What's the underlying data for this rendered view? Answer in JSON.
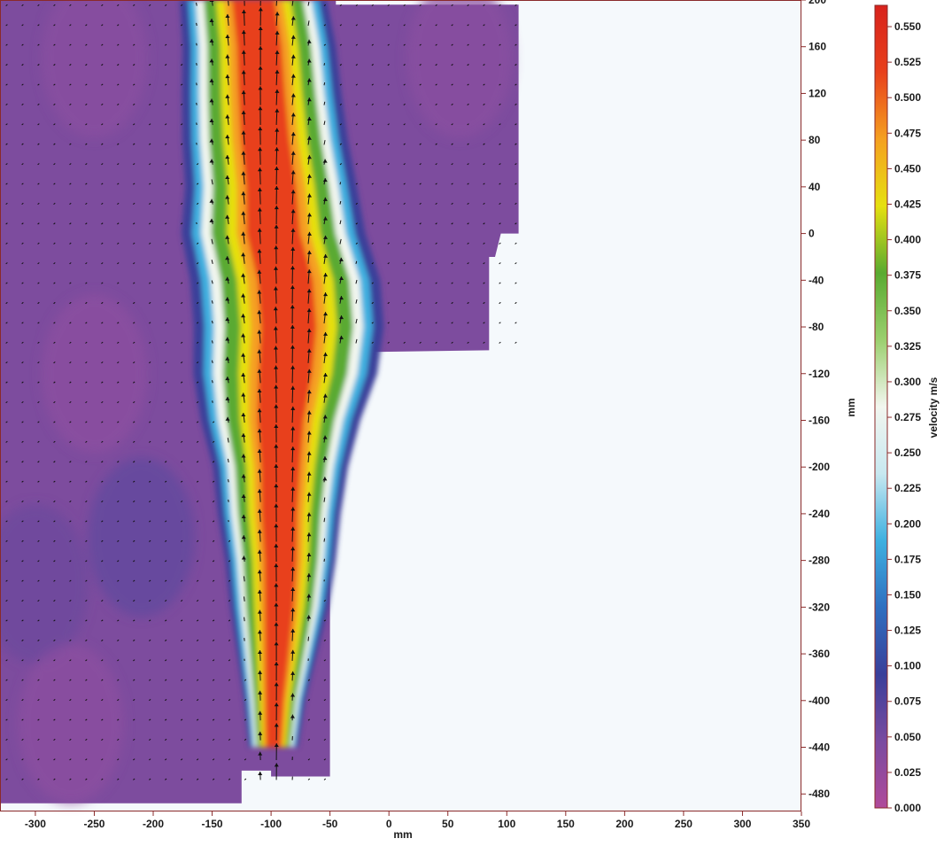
{
  "chart_data": {
    "type": "heatmap",
    "description_free": true,
    "xlabel": "mm",
    "ylabel": "mm",
    "colorbar_label": "velocity m/s",
    "xlim": [
      -330,
      350
    ],
    "ylim": [
      -495,
      200
    ],
    "x_ticks": [
      -300,
      -250,
      -200,
      -150,
      -100,
      -50,
      0,
      50,
      100,
      150,
      200,
      250,
      300,
      350
    ],
    "y_ticks": [
      200,
      160,
      120,
      80,
      40,
      0,
      -40,
      -80,
      -120,
      -160,
      -200,
      -240,
      -280,
      -320,
      -360,
      -400,
      -440,
      -480
    ],
    "colorbar_ticks": [
      "0.550",
      "0.525",
      "0.500",
      "0.475",
      "0.450",
      "0.425",
      "0.400",
      "0.375",
      "0.350",
      "0.325",
      "0.300",
      "0.275",
      "0.250",
      "0.225",
      "0.200",
      "0.175",
      "0.150",
      "0.125",
      "0.100",
      "0.075",
      "0.050",
      "0.025",
      "0.000"
    ],
    "colorbar_range": [
      0.0,
      0.565
    ],
    "colormap": [
      "#b04a9a",
      "#7a4aa0",
      "#3a3f9a",
      "#2f6fc0",
      "#3fb0e0",
      "#c8e8f0",
      "#f2f6ef",
      "#9bcf6e",
      "#5aaa30",
      "#e6e010",
      "#f5a020",
      "#e8401c",
      "#d8221c"
    ],
    "jet_centerline": {
      "y": [
        200,
        160,
        120,
        80,
        40,
        0,
        -40,
        -80,
        -120,
        -160,
        -200,
        -240,
        -280,
        -320,
        -360,
        -400,
        -440
      ],
      "x": [
        -115,
        -110,
        -108,
        -105,
        -100,
        -98,
        -88,
        -85,
        -88,
        -92,
        -92,
        -93,
        -92,
        -93,
        -95,
        -97,
        -98
      ]
    },
    "jet_half_width_mm": {
      "y": [
        200,
        160,
        120,
        80,
        40,
        0,
        -40,
        -80,
        -120,
        -160,
        -200,
        -240,
        -280,
        -320,
        -360,
        -400,
        -440
      ],
      "w": [
        48,
        50,
        52,
        54,
        56,
        60,
        62,
        62,
        60,
        52,
        44,
        40,
        36,
        32,
        26,
        20,
        16
      ]
    },
    "peak_velocity_m_s": 0.56,
    "ambient_velocity_m_s": 0.02,
    "vector_field": "upward arrows in jet, near-zero elsewhere"
  }
}
